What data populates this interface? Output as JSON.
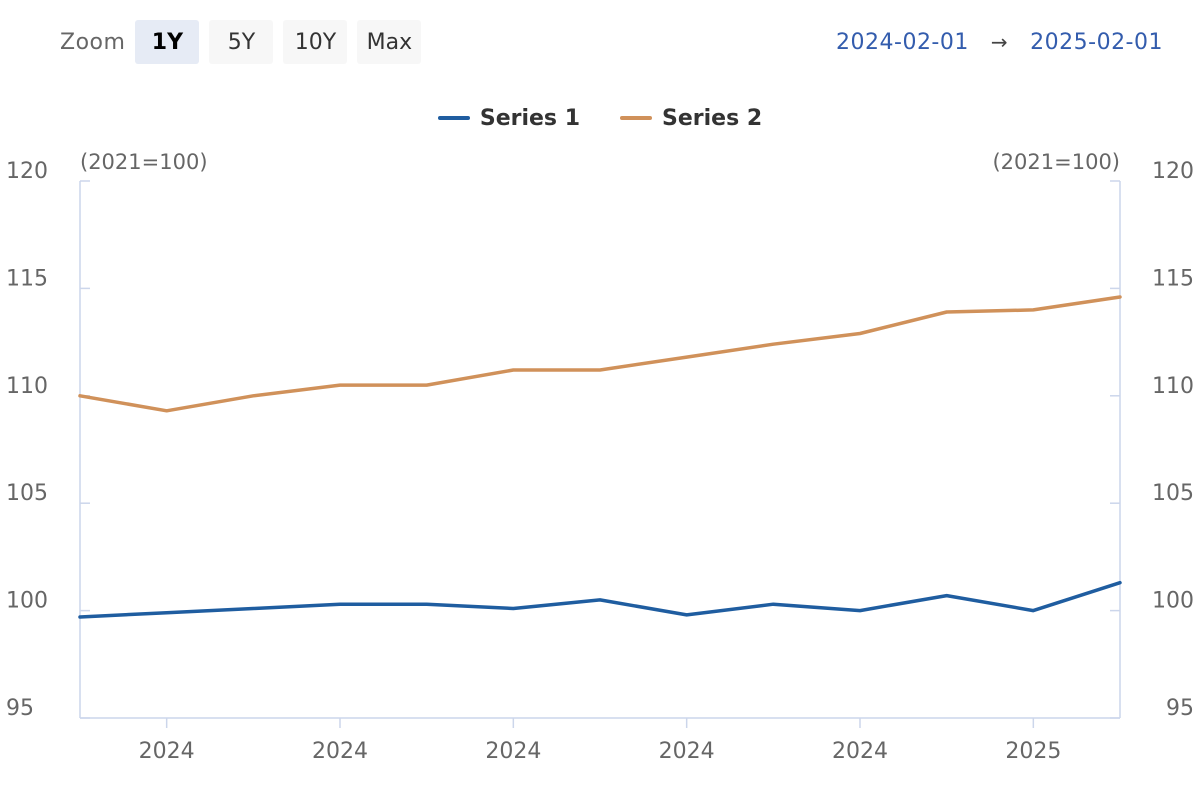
{
  "zoom": {
    "label": "Zoom",
    "buttons": [
      "1Y",
      "5Y",
      "10Y",
      "Max"
    ],
    "active": "1Y"
  },
  "range": {
    "from": "2024-02-01",
    "arrow": "→",
    "to": "2025-02-01"
  },
  "colors": {
    "series1": "#1f5da0",
    "series2": "#d0915a",
    "axis": "#ccd6eb"
  },
  "chart_data": {
    "type": "line",
    "x": [
      "2024-02-01",
      "2024-03-01",
      "2024-04-01",
      "2024-05-01",
      "2024-06-01",
      "2024-07-01",
      "2024-08-01",
      "2024-09-01",
      "2024-10-01",
      "2024-11-01",
      "2024-12-01",
      "2025-01-01",
      "2025-02-01"
    ],
    "x_tick_labels": [
      "2024",
      "2024",
      "2024",
      "2024",
      "2024",
      "2025"
    ],
    "series": [
      {
        "name": "Series 1",
        "values": [
          99.7,
          99.9,
          100.1,
          100.3,
          100.3,
          100.1,
          100.5,
          99.8,
          100.3,
          100.0,
          100.7,
          100.0,
          101.3
        ]
      },
      {
        "name": "Series 2",
        "values": [
          110.0,
          109.3,
          110.0,
          110.5,
          110.5,
          111.2,
          111.2,
          111.8,
          112.4,
          112.9,
          113.9,
          114.0,
          114.6
        ]
      }
    ],
    "ylim": [
      95,
      120
    ],
    "y_ticks": [
      95,
      100,
      105,
      110,
      115,
      120
    ],
    "y_unit_left": "(2021=100)",
    "y_unit_right": "(2021=100)",
    "legend": "top-center",
    "grid": false
  }
}
